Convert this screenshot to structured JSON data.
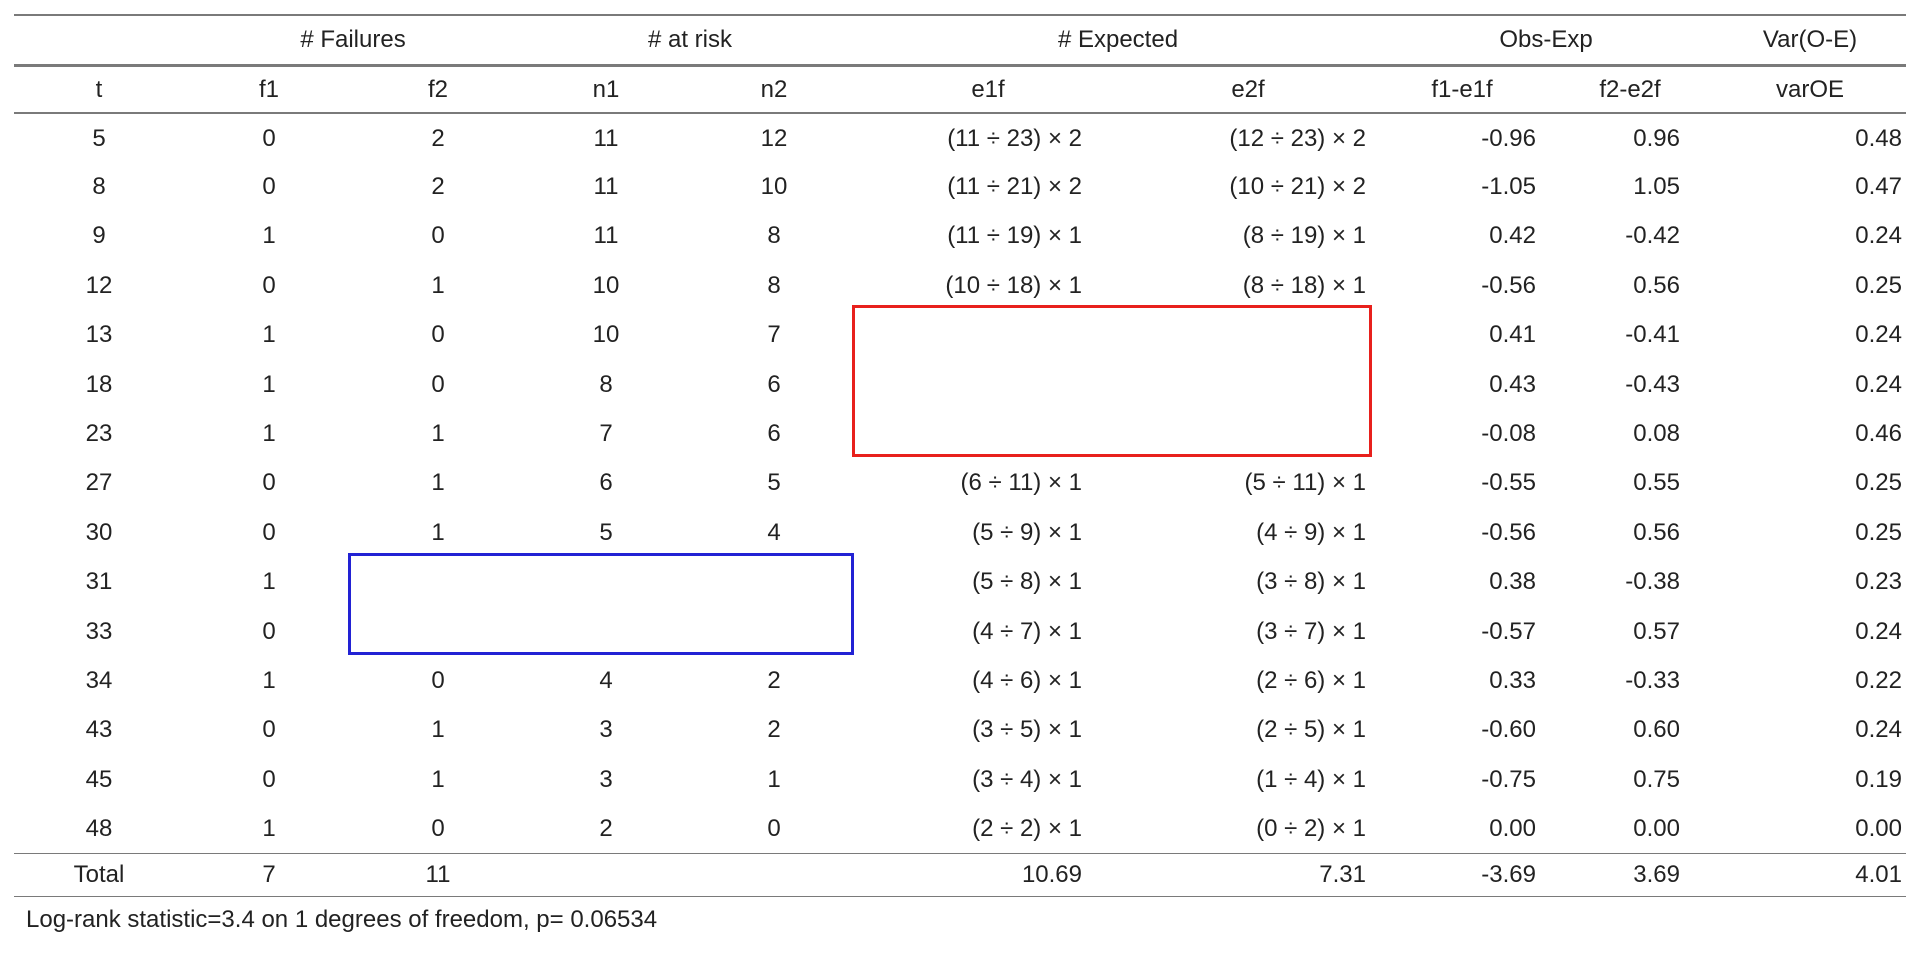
{
  "table": {
    "group_headers": [
      "",
      "# Failures",
      "# at risk",
      "# Expected",
      "Obs-Exp",
      "Var(O-E)"
    ],
    "columns": [
      "t",
      "f1",
      "f2",
      "n1",
      "n2",
      "e1f",
      "e2f",
      "f1-e1f",
      "f2-e2f",
      "varOE"
    ],
    "rows": [
      [
        "5",
        "0",
        "2",
        "11",
        "12",
        "(11 ÷ 23) × 2",
        "(12 ÷ 23) × 2",
        "-0.96",
        "0.96",
        "0.48"
      ],
      [
        "8",
        "0",
        "2",
        "11",
        "10",
        "(11 ÷ 21) × 2",
        "(10 ÷ 21) × 2",
        "-1.05",
        "1.05",
        "0.47"
      ],
      [
        "9",
        "1",
        "0",
        "11",
        "8",
        "(11 ÷ 19) × 1",
        "(8 ÷ 19) × 1",
        "0.42",
        "-0.42",
        "0.24"
      ],
      [
        "12",
        "0",
        "1",
        "10",
        "8",
        "(10 ÷ 18) × 1",
        "(8 ÷ 18) × 1",
        "-0.56",
        "0.56",
        "0.25"
      ],
      [
        "13",
        "1",
        "0",
        "10",
        "7",
        "",
        "",
        "0.41",
        "-0.41",
        "0.24"
      ],
      [
        "18",
        "1",
        "0",
        "8",
        "6",
        "",
        "",
        "0.43",
        "-0.43",
        "0.24"
      ],
      [
        "23",
        "1",
        "1",
        "7",
        "6",
        "",
        "",
        "-0.08",
        "0.08",
        "0.46"
      ],
      [
        "27",
        "0",
        "1",
        "6",
        "5",
        "(6 ÷ 11) × 1",
        "(5 ÷ 11) × 1",
        "-0.55",
        "0.55",
        "0.25"
      ],
      [
        "30",
        "0",
        "1",
        "5",
        "4",
        "(5 ÷ 9) × 1",
        "(4 ÷ 9) × 1",
        "-0.56",
        "0.56",
        "0.25"
      ],
      [
        "31",
        "1",
        "",
        "",
        "",
        "(5 ÷ 8) × 1",
        "(3 ÷ 8) × 1",
        "0.38",
        "-0.38",
        "0.23"
      ],
      [
        "33",
        "0",
        "",
        "",
        "",
        "(4 ÷ 7) × 1",
        "(3 ÷ 7) × 1",
        "-0.57",
        "0.57",
        "0.24"
      ],
      [
        "34",
        "1",
        "0",
        "4",
        "2",
        "(4 ÷ 6) × 1",
        "(2 ÷ 6) × 1",
        "0.33",
        "-0.33",
        "0.22"
      ],
      [
        "43",
        "0",
        "1",
        "3",
        "2",
        "(3 ÷ 5) × 1",
        "(2 ÷ 5) × 1",
        "-0.60",
        "0.60",
        "0.24"
      ],
      [
        "45",
        "0",
        "1",
        "3",
        "1",
        "(3 ÷ 4) × 1",
        "(1 ÷ 4) × 1",
        "-0.75",
        "0.75",
        "0.19"
      ],
      [
        "48",
        "1",
        "0",
        "2",
        "0",
        "(2 ÷ 2) × 1",
        "(0 ÷ 2) × 1",
        "0.00",
        "0.00",
        "0.00"
      ]
    ],
    "total": [
      "Total",
      "7",
      "11",
      "",
      "",
      "10.69",
      "7.31",
      "-3.69",
      "3.69",
      "4.01"
    ]
  },
  "footnote": "Log-rank statistic=3.4 on 1 degrees of freedom, p= 0.06534",
  "highlights": {
    "red_box_color": "#e8201c",
    "blue_box_color": "#2222d4"
  }
}
